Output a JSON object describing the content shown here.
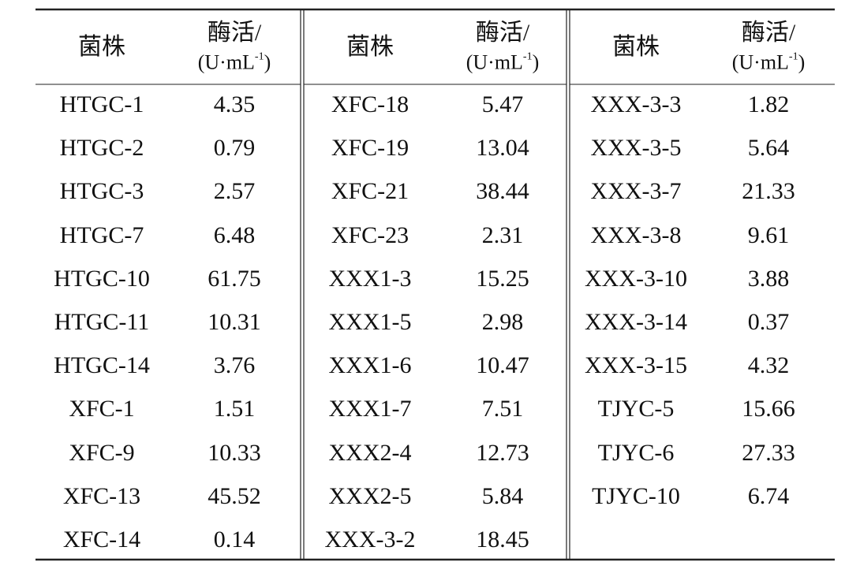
{
  "table": {
    "groups": [
      {
        "header": {
          "strain": "菌株",
          "activity": "酶活/",
          "unit_open": "(U·mL",
          "unit_exp": "-1",
          "unit_close": ")"
        },
        "rows": [
          [
            "HTGC-1",
            4.35
          ],
          [
            "HTGC-2",
            0.79
          ],
          [
            "HTGC-3",
            2.57
          ],
          [
            "HTGC-7",
            6.48
          ],
          [
            "HTGC-10",
            61.75
          ],
          [
            "HTGC-11",
            10.31
          ],
          [
            "HTGC-14",
            3.76
          ],
          [
            "XFC-1",
            1.51
          ],
          [
            "XFC-9",
            10.33
          ],
          [
            "XFC-13",
            45.52
          ],
          [
            "XFC-14",
            0.14
          ]
        ]
      },
      {
        "header": {
          "strain": "菌株",
          "activity": "酶活/",
          "unit_open": "(U·mL",
          "unit_exp": "-1",
          "unit_close": ")"
        },
        "rows": [
          [
            "XFC-18",
            5.47
          ],
          [
            "XFC-19",
            13.04
          ],
          [
            "XFC-21",
            38.44
          ],
          [
            "XFC-23",
            2.31
          ],
          [
            "XXX1-3",
            15.25
          ],
          [
            "XXX1-5",
            2.98
          ],
          [
            "XXX1-6",
            10.47
          ],
          [
            "XXX1-7",
            7.51
          ],
          [
            "XXX2-4",
            12.73
          ],
          [
            "XXX2-5",
            5.84
          ],
          [
            "XXX-3-2",
            18.45
          ]
        ]
      },
      {
        "header": {
          "strain": "菌株",
          "activity": "酶活/",
          "unit_open": "(U·mL",
          "unit_exp": "-1",
          "unit_close": ")"
        },
        "rows": [
          [
            "XXX-3-3",
            1.82
          ],
          [
            "XXX-3-5",
            5.64
          ],
          [
            "XXX-3-7",
            21.33
          ],
          [
            "XXX-3-8",
            9.61
          ],
          [
            "XXX-3-10",
            3.88
          ],
          [
            "XXX-3-14",
            0.37
          ],
          [
            "XXX-3-15",
            4.32
          ],
          [
            "TJYC-5",
            15.66
          ],
          [
            "TJYC-6",
            27.33
          ],
          [
            "TJYC-10",
            6.74
          ]
        ]
      }
    ]
  }
}
